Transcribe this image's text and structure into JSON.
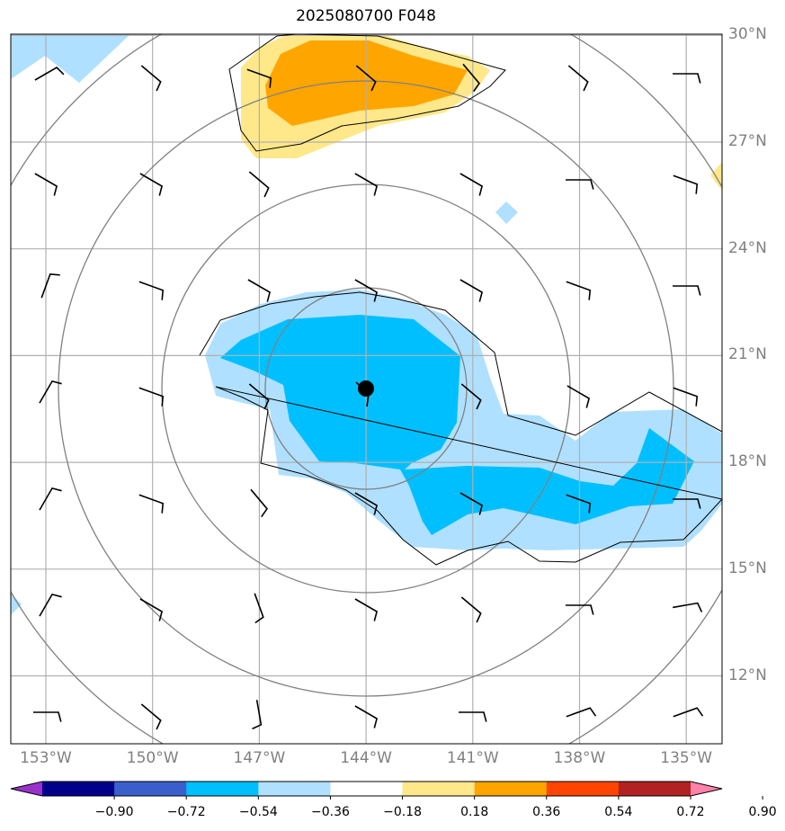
{
  "title": "2025080700 F048",
  "lat_labels": [
    {
      "label": "30°N",
      "lat": 30
    },
    {
      "label": "27°N",
      "lat": 27
    },
    {
      "label": "24°N",
      "lat": 24
    },
    {
      "label": "21°N",
      "lat": 21
    },
    {
      "label": "18°N",
      "lat": 18
    },
    {
      "label": "15°N",
      "lat": 15
    },
    {
      "label": "12°N",
      "lat": 12
    }
  ],
  "lon_labels": [
    {
      "label": "153°W",
      "lon": -153
    },
    {
      "label": "150°W",
      "lon": -150
    },
    {
      "label": "147°W",
      "lon": -147
    },
    {
      "label": "144°W",
      "lon": -144
    },
    {
      "label": "141°W",
      "lon": -141
    },
    {
      "label": "138°W",
      "lon": -138
    },
    {
      "label": "135°W",
      "lon": -135
    }
  ],
  "colorbar": {
    "ticks": [
      "−0.90",
      "−0.72",
      "−0.54",
      "−0.36",
      "−0.18",
      "0.18",
      "0.36",
      "0.54",
      "0.72",
      "0.90"
    ],
    "colors": [
      "#9932CC",
      "#00008B",
      "#3A5FCD",
      "#00BFFF",
      "#B0E0FF",
      "#FFFFFF",
      "#FFE88A",
      "#FFA500",
      "#FF4500",
      "#B22222",
      "#FF82AB"
    ]
  },
  "storm_center": {
    "lon": -144,
    "lat": 20.1
  },
  "colors": {
    "light_blue": "#B0E0FF",
    "deep_sky_blue": "#00BFFF",
    "light_yellow": "#FFE88A",
    "orange": "#FFA500",
    "grid": "#B0B0B0",
    "rings": "#808080"
  }
}
